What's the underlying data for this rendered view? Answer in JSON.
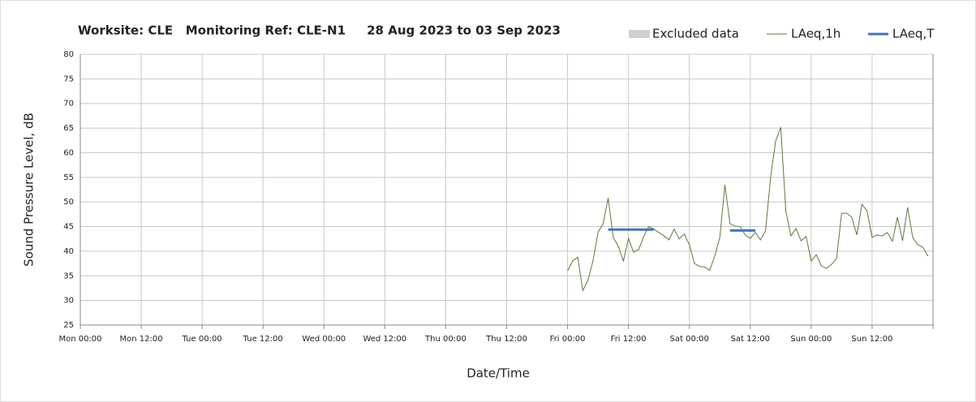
{
  "chart_data": {
    "type": "line",
    "title": "Worksite: CLE   Monitoring Ref: CLE-N1     28 Aug 2023 to 03 Sep 2023",
    "x_label": "Date/Time",
    "y_label": "Sound Pressure Level, dB",
    "xlim": [
      0,
      168
    ],
    "xticks": [
      {
        "value": 0,
        "label": "Mon 00:00"
      },
      {
        "value": 12,
        "label": "Mon 12:00"
      },
      {
        "value": 24,
        "label": "Tue 00:00"
      },
      {
        "value": 36,
        "label": "Tue 12:00"
      },
      {
        "value": 48,
        "label": "Wed 00:00"
      },
      {
        "value": 60,
        "label": "Wed 12:00"
      },
      {
        "value": 72,
        "label": "Thu 00:00"
      },
      {
        "value": 84,
        "label": "Thu 12:00"
      },
      {
        "value": 96,
        "label": "Fri 00:00"
      },
      {
        "value": 108,
        "label": "Fri 12:00"
      },
      {
        "value": 120,
        "label": "Sat 00:00"
      },
      {
        "value": 132,
        "label": "Sat 12:00"
      },
      {
        "value": 144,
        "label": "Sun 00:00"
      },
      {
        "value": 156,
        "label": "Sun 12:00"
      }
    ],
    "ylim": [
      25,
      80
    ],
    "yticks": [
      25,
      30,
      35,
      40,
      45,
      50,
      55,
      60,
      65,
      70,
      75,
      80
    ],
    "grid": true,
    "legend": "top-right",
    "excluded": {
      "name": "Excluded data",
      "color": "#d0d0d0"
    },
    "x": [
      96,
      97,
      98,
      99,
      100,
      101,
      102,
      103,
      104,
      105,
      106,
      107,
      108,
      109,
      110,
      111,
      112,
      113,
      114,
      115,
      116,
      117,
      118,
      119,
      120,
      121,
      122,
      123,
      124,
      125,
      126,
      127,
      128,
      129,
      130,
      131,
      132,
      133,
      134,
      135,
      136,
      137,
      138,
      139,
      140,
      141,
      142,
      143,
      144,
      145,
      146,
      147,
      148,
      149,
      150,
      151,
      152,
      153,
      154,
      155,
      156,
      157,
      158,
      159,
      160,
      161,
      162,
      163,
      164,
      165,
      166,
      167
    ],
    "series": [
      {
        "name": "LAeq,1h",
        "color": "#5a7a3a",
        "width": 1,
        "values": [
          36.0,
          38.0,
          38.8,
          32.0,
          34.0,
          38.0,
          43.8,
          45.6,
          50.8,
          42.8,
          41.0,
          38.0,
          42.6,
          39.8,
          40.3,
          43.0,
          45.0,
          44.5,
          43.8,
          43.1,
          42.3,
          44.5,
          42.5,
          43.5,
          41.3,
          37.5,
          36.9,
          36.8,
          36.1,
          39.0,
          42.8,
          53.5,
          45.6,
          45.1,
          45.0,
          43.3,
          42.6,
          43.8,
          42.3,
          44.1,
          55.0,
          62.4,
          65.2,
          48.2,
          43.1,
          44.6,
          42.1,
          43.0,
          38.0,
          39.3,
          37.0,
          36.5,
          37.3,
          38.5,
          47.7,
          47.7,
          46.9,
          43.3,
          49.5,
          48.2,
          42.8,
          43.3,
          43.1,
          43.8,
          42.0,
          46.9,
          42.1,
          48.9,
          42.8,
          41.3,
          40.8,
          39.0
        ]
      },
      {
        "name": "LAeq,T",
        "color": "#4472c4",
        "width": 3,
        "values": [
          null,
          null,
          null,
          null,
          null,
          null,
          null,
          null,
          44.4,
          44.4,
          44.4,
          44.4,
          44.4,
          44.4,
          44.4,
          44.4,
          44.4,
          44.4,
          null,
          null,
          null,
          null,
          null,
          null,
          null,
          null,
          null,
          null,
          null,
          null,
          null,
          null,
          44.2,
          44.2,
          44.2,
          44.2,
          44.2,
          44.2,
          null,
          null,
          null,
          null,
          null,
          null,
          null,
          null,
          null,
          null,
          null,
          null,
          null,
          null,
          null,
          null,
          null,
          null,
          null,
          null,
          null,
          null,
          null,
          null,
          null,
          null,
          null,
          null,
          null,
          null,
          null,
          null,
          null,
          null
        ]
      }
    ]
  }
}
